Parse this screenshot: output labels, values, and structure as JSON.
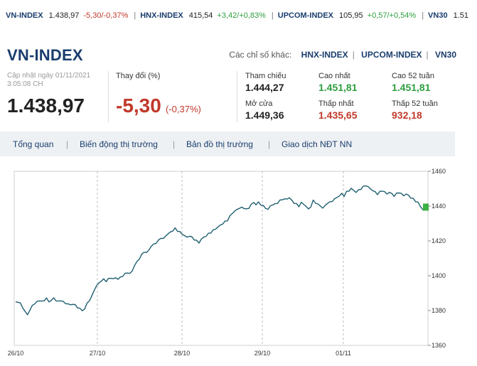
{
  "ticker": [
    {
      "name": "VN-INDEX",
      "value": "1.438,97",
      "change": "-5,30/-0,37%",
      "dir": "neg"
    },
    {
      "name": "HNX-INDEX",
      "value": "415,54",
      "change": "+3,42/+0,83%",
      "dir": "pos"
    },
    {
      "name": "UPCOM-INDEX",
      "value": "105,95",
      "change": "+0,57/+0,54%",
      "dir": "pos"
    },
    {
      "name": "VN30",
      "value": "1.51",
      "change": "",
      "dir": "pos"
    }
  ],
  "title": "VN-INDEX",
  "other_indexes": {
    "label": "Các chỉ số khác:",
    "links": [
      "HNX-INDEX",
      "UPCOM-INDEX",
      "VN30"
    ]
  },
  "summary": {
    "update_label": "Cập nhật ngày 01/11/2021",
    "update_time": "3:05:08 CH",
    "value": "1.438,97",
    "change_label": "Thay đổi (%)",
    "change_value": "-5,30",
    "change_percent": "(-0,37%)"
  },
  "stats": {
    "ref_label": "Tham chiếu",
    "ref_value": "1.444,27",
    "open_label": "Mở cửa",
    "open_value": "1.449,36",
    "high_label": "Cao nhất",
    "high_value": "1.451,81",
    "low_label": "Thấp nhất",
    "low_value": "1.435,65",
    "high52_label": "Cao 52 tuần",
    "high52_value": "1.451,81",
    "low52_label": "Thấp 52 tuần",
    "low52_value": "932,18"
  },
  "tabs": [
    "Tổng quan",
    "Biến động thị trường",
    "Bản đồ thị trường",
    "Giao dịch NĐT NN"
  ],
  "chart_data": {
    "type": "line",
    "x_labels": [
      "26/10",
      "27/10",
      "28/10",
      "29/10",
      "01/11"
    ],
    "y_ticks": [
      1360,
      1380,
      1400,
      1420,
      1440,
      1460
    ],
    "ylim": [
      1360,
      1460
    ],
    "color": "#1f5f70",
    "series": [
      {
        "values": [
          1385,
          1385,
          1384,
          1382,
          1379,
          1378,
          1380,
          1383,
          1384,
          1385,
          1386,
          1385,
          1386,
          1387,
          1385,
          1386,
          1387,
          1386,
          1385,
          1386,
          1385,
          1384,
          1384,
          1383,
          1384,
          1383,
          1382,
          1381,
          1380,
          1381,
          1384,
          1386,
          1388,
          1392,
          1394,
          1396,
          1397,
          1398,
          1397,
          1398,
          1399,
          1398,
          1399,
          1398,
          1399,
          1400,
          1401,
          1402,
          1401,
          1403,
          1406,
          1408,
          1410,
          1412,
          1414,
          1413,
          1415,
          1417,
          1418,
          1419,
          1420,
          1422,
          1421,
          1423,
          1424,
          1425,
          1426,
          1427,
          1426,
          1425,
          1424,
          1423,
          1422,
          1423,
          1422,
          1421,
          1420,
          1419,
          1421,
          1422,
          1423,
          1424,
          1425,
          1426,
          1427,
          1428,
          1429,
          1430,
          1431,
          1432,
          1434,
          1436,
          1437,
          1438,
          1439,
          1439,
          1439,
          1438,
          1439,
          1441,
          1442,
          1441,
          1442,
          1441,
          1440,
          1439,
          1438,
          1440,
          1441,
          1441,
          1442,
          1443,
          1444,
          1444,
          1444,
          1445,
          1443,
          1442,
          1441,
          1440,
          1442,
          1441,
          1440,
          1438,
          1440,
          1443,
          1442,
          1441,
          1440,
          1439,
          1440,
          1442,
          1442,
          1443,
          1444,
          1445,
          1446,
          1447,
          1446,
          1448,
          1449,
          1450,
          1449,
          1448,
          1449,
          1450,
          1451,
          1452,
          1451,
          1450,
          1449,
          1448,
          1447,
          1448,
          1449,
          1448,
          1447,
          1448,
          1447,
          1446,
          1447,
          1448,
          1447,
          1446,
          1447,
          1446,
          1445,
          1444,
          1443,
          1442,
          1440,
          1438,
          1439
        ]
      }
    ],
    "grid": true
  }
}
